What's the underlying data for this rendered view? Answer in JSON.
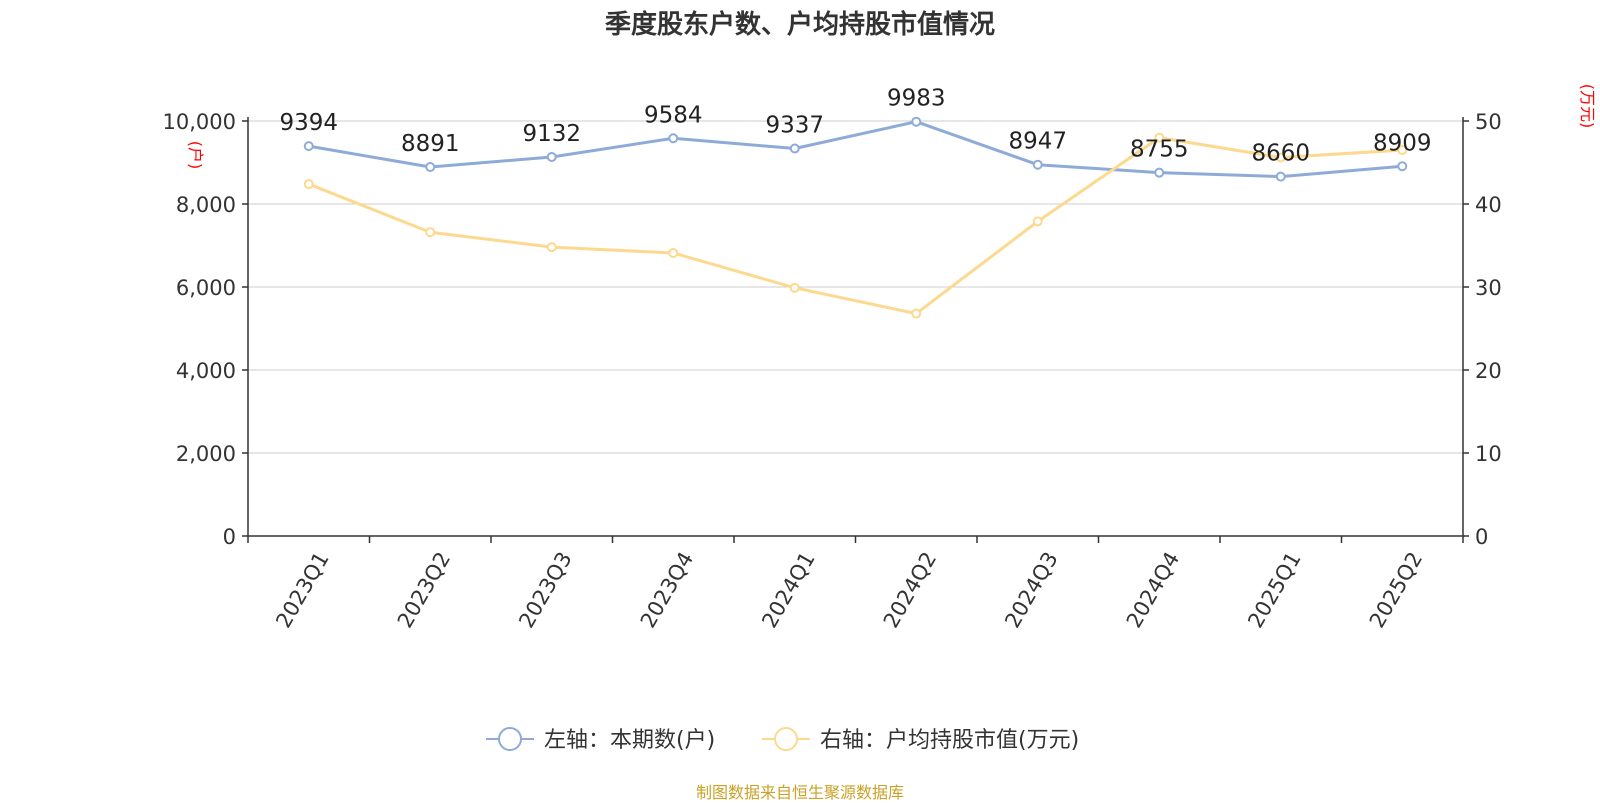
{
  "title": "季度股东户数、户均持股市值情况",
  "source_note": "制图数据来自恒生聚源数据库",
  "colors": {
    "series_left": "#8eabd8",
    "series_right": "#fcd98f",
    "axis_unit": "#ff0000",
    "grid": "#cccccc",
    "axis": "#333333",
    "text": "#333333",
    "footer": "#c9a227"
  },
  "chart_data": {
    "type": "line",
    "title": "季度股东户数、户均持股市值情况",
    "categories": [
      "2023Q1",
      "2023Q2",
      "2023Q3",
      "2023Q4",
      "2024Q1",
      "2024Q2",
      "2024Q3",
      "2024Q4",
      "2025Q1",
      "2025Q2"
    ],
    "y_left": {
      "unit_label": "(户)",
      "range": [
        0,
        10000
      ],
      "ticks": [
        0,
        2000,
        4000,
        6000,
        8000,
        10000
      ],
      "tick_labels": [
        "0",
        "2,000",
        "4,000",
        "6,000",
        "8,000",
        "10,000"
      ]
    },
    "y_right": {
      "unit_label": "(万元)",
      "range": [
        0,
        50
      ],
      "ticks": [
        0,
        10,
        20,
        30,
        40,
        50
      ],
      "tick_labels": [
        "0",
        "10",
        "20",
        "30",
        "40",
        "50"
      ]
    },
    "grid": true,
    "legend_position": "bottom-center",
    "series": [
      {
        "name": "左轴：本期数(户)",
        "axis": "left",
        "values": [
          9394,
          8891,
          9132,
          9584,
          9337,
          9983,
          8947,
          8755,
          8660,
          8909
        ],
        "data_labels": [
          "9394",
          "8891",
          "9132",
          "9584",
          "9337",
          "9983",
          "8947",
          "8755",
          "8660",
          "8909"
        ]
      },
      {
        "name": "右轴：户均持股市值(万元)",
        "axis": "right",
        "values": [
          42.4,
          36.6,
          34.8,
          34.1,
          29.9,
          26.8,
          37.9,
          48.0,
          45.6,
          46.5
        ]
      }
    ]
  }
}
